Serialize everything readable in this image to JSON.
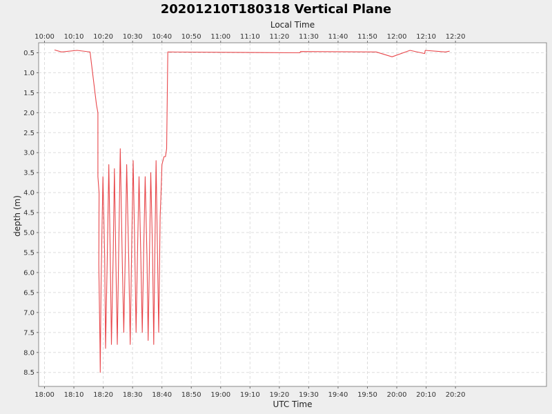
{
  "chart_data": {
    "type": "line",
    "title": "20201210T180318 Vertical Plane",
    "xlabel": "UTC Time",
    "x2label": "Local Time",
    "ylabel": "depth (m)",
    "x_unit": "minutes since 18:00 UTC",
    "xlim": [
      -2,
      171
    ],
    "ylim": [
      0.25,
      8.85
    ],
    "y_inverted": true,
    "grid": true,
    "colors": {
      "line": "#e8464a",
      "plot_bg": "#ffffff",
      "page_bg": "#eeeeee",
      "grid": "#dddddd"
    },
    "x_ticks": [
      {
        "v": 0,
        "utc": "18:00",
        "local": "10:00"
      },
      {
        "v": 10,
        "utc": "18:10",
        "local": "10:10"
      },
      {
        "v": 20,
        "utc": "18:20",
        "local": "10:20"
      },
      {
        "v": 30,
        "utc": "18:30",
        "local": "10:30"
      },
      {
        "v": 40,
        "utc": "18:40",
        "local": "10:40"
      },
      {
        "v": 50,
        "utc": "18:50",
        "local": "10:50"
      },
      {
        "v": 60,
        "utc": "19:00",
        "local": "11:00"
      },
      {
        "v": 70,
        "utc": "19:10",
        "local": "11:10"
      },
      {
        "v": 80,
        "utc": "19:20",
        "local": "11:20"
      },
      {
        "v": 90,
        "utc": "19:30",
        "local": "11:30"
      },
      {
        "v": 100,
        "utc": "19:40",
        "local": "11:40"
      },
      {
        "v": 110,
        "utc": "19:50",
        "local": "11:50"
      },
      {
        "v": 120,
        "utc": "20:00",
        "local": "12:00"
      },
      {
        "v": 130,
        "utc": "20:10",
        "local": "12:10"
      },
      {
        "v": 140,
        "utc": "20:20",
        "local": "12:20"
      }
    ],
    "y_ticks": [
      "0.5",
      "1.0",
      "1.5",
      "2.0",
      "2.5",
      "3.0",
      "3.5",
      "4.0",
      "4.5",
      "5.0",
      "5.5",
      "6.0",
      "6.5",
      "7.0",
      "7.5",
      "8.0",
      "8.5"
    ],
    "series": [
      {
        "points": [
          [
            3.4,
            0.43
          ],
          [
            5.8,
            0.48
          ],
          [
            11.1,
            0.44
          ],
          [
            15.5,
            0.48
          ],
          [
            17.7,
            1.8
          ],
          [
            18.2,
            2.0
          ],
          [
            18.2,
            3.6
          ],
          [
            18.6,
            4.0
          ],
          [
            18.5,
            5.8
          ],
          [
            18.9,
            7.8
          ],
          [
            19.0,
            8.5
          ],
          [
            19.3,
            6.1
          ],
          [
            19.9,
            3.6
          ],
          [
            20.5,
            5.6
          ],
          [
            20.8,
            7.9
          ],
          [
            21.4,
            5.5
          ],
          [
            21.9,
            3.3
          ],
          [
            22.4,
            5.6
          ],
          [
            22.8,
            7.8
          ],
          [
            23.4,
            5.5
          ],
          [
            23.8,
            3.4
          ],
          [
            24.3,
            5.7
          ],
          [
            24.8,
            7.8
          ],
          [
            25.3,
            5.4
          ],
          [
            25.8,
            2.9
          ],
          [
            26.5,
            5.7
          ],
          [
            27.0,
            7.5
          ],
          [
            27.5,
            5.6
          ],
          [
            28.0,
            3.3
          ],
          [
            28.7,
            5.7
          ],
          [
            29.2,
            7.8
          ],
          [
            29.7,
            5.3
          ],
          [
            30.2,
            3.2
          ],
          [
            30.8,
            5.6
          ],
          [
            31.2,
            7.5
          ],
          [
            31.7,
            5.4
          ],
          [
            32.2,
            3.6
          ],
          [
            32.8,
            5.6
          ],
          [
            33.3,
            7.5
          ],
          [
            33.8,
            5.4
          ],
          [
            34.3,
            3.6
          ],
          [
            34.9,
            5.6
          ],
          [
            35.3,
            7.7
          ],
          [
            35.8,
            5.4
          ],
          [
            36.2,
            3.5
          ],
          [
            36.8,
            5.5
          ],
          [
            37.2,
            7.8
          ],
          [
            37.6,
            5.4
          ],
          [
            38.0,
            3.2
          ],
          [
            38.5,
            5.6
          ],
          [
            38.9,
            7.5
          ],
          [
            39.4,
            4.6
          ],
          [
            39.7,
            4.0
          ],
          [
            40.0,
            3.3
          ],
          [
            40.7,
            3.1
          ],
          [
            41.2,
            3.1
          ],
          [
            41.6,
            2.9
          ],
          [
            42.0,
            0.48
          ],
          [
            65,
            0.49
          ],
          [
            87,
            0.5
          ],
          [
            87.2,
            0.47
          ],
          [
            113,
            0.48
          ],
          [
            118.4,
            0.6
          ],
          [
            124.5,
            0.44
          ],
          [
            129.5,
            0.52
          ],
          [
            129.7,
            0.44
          ],
          [
            136.5,
            0.48
          ],
          [
            138,
            0.46
          ]
        ]
      }
    ]
  }
}
